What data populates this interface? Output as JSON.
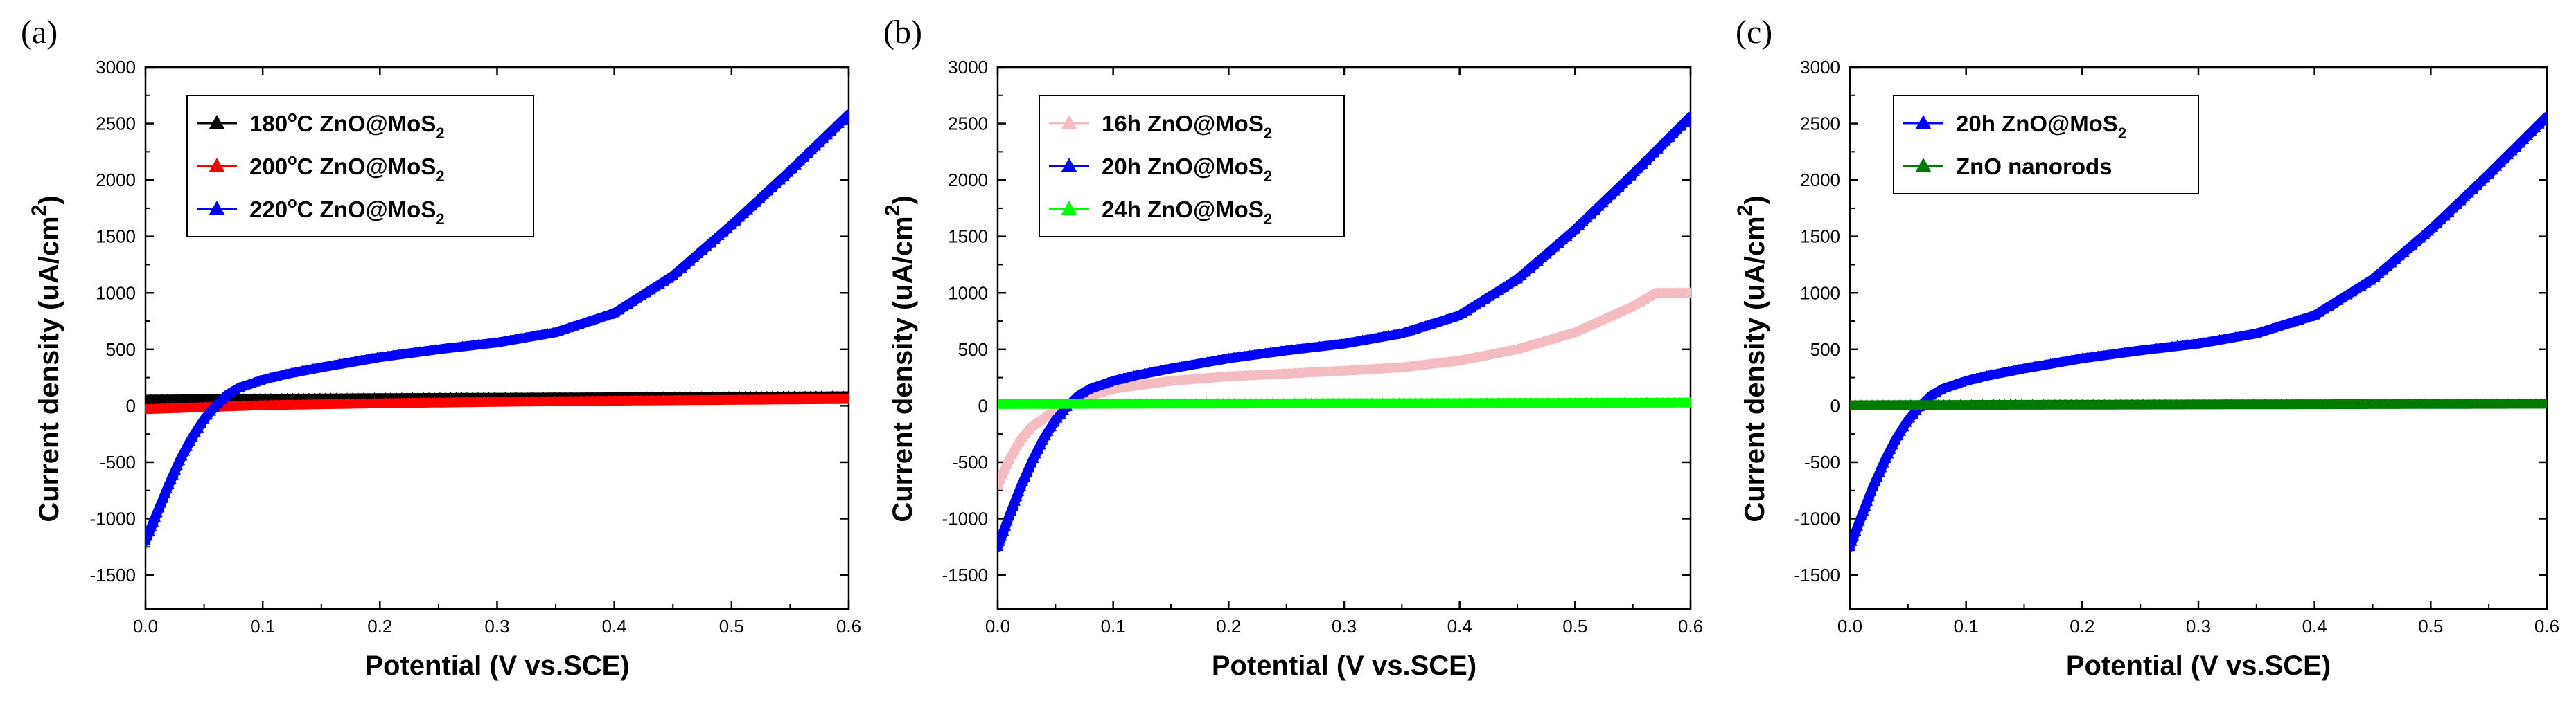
{
  "chart_data": [
    {
      "type": "line",
      "panel_label": "(a)",
      "xlabel": "Potential (V vs.SCE)",
      "ylabel": "Current density (uA/cm",
      "ylabel_sup": "2",
      "ylabel_close": ")",
      "xlim": [
        0.0,
        0.6
      ],
      "ylim": [
        -1800,
        3000
      ],
      "x_ticks": [
        "0.0",
        "0.1",
        "0.2",
        "0.3",
        "0.4",
        "0.5",
        "0.6"
      ],
      "y_ticks": [
        "-1500",
        "-1000",
        "-500",
        "0",
        "500",
        "1000",
        "1500",
        "2000",
        "2500",
        "3000"
      ],
      "legend_position": "top-left",
      "series": [
        {
          "name": "180°C ZnO@MoS₂",
          "label_pre": "180",
          "label_sup": "o",
          "label_mid": "C ZnO@MoS",
          "label_sub": "2",
          "color": "#000000",
          "x": [
            0,
            0.1,
            0.2,
            0.3,
            0.4,
            0.5,
            0.6
          ],
          "y": [
            55,
            62,
            68,
            72,
            76,
            80,
            85
          ]
        },
        {
          "name": "200°C ZnO@MoS₂",
          "label_pre": "200",
          "label_sup": "o",
          "label_mid": "C ZnO@MoS",
          "label_sub": "2",
          "color": "#ff0000",
          "x": [
            0,
            0.1,
            0.2,
            0.3,
            0.4,
            0.5,
            0.6
          ],
          "y": [
            -30,
            5,
            22,
            35,
            45,
            52,
            60
          ]
        },
        {
          "name": "220°C ZnO@MoS₂",
          "label_pre": "220",
          "label_sup": "o",
          "label_mid": "C ZnO@MoS",
          "label_sub": "2",
          "color": "#0000ff",
          "x": [
            0,
            0.01,
            0.02,
            0.03,
            0.04,
            0.05,
            0.06,
            0.07,
            0.08,
            0.1,
            0.12,
            0.15,
            0.2,
            0.25,
            0.3,
            0.35,
            0.4,
            0.45,
            0.5,
            0.55,
            0.6
          ],
          "y": [
            -1200,
            -950,
            -700,
            -470,
            -280,
            -120,
            0,
            100,
            160,
            230,
            280,
            340,
            430,
            500,
            560,
            650,
            820,
            1150,
            1600,
            2080,
            2580
          ]
        }
      ]
    },
    {
      "type": "line",
      "panel_label": "(b)",
      "xlabel": "Potential (V vs.SCE)",
      "ylabel": "Current density (uA/cm",
      "ylabel_sup": "2",
      "ylabel_close": ")",
      "xlim": [
        0.0,
        0.6
      ],
      "ylim": [
        -1800,
        3000
      ],
      "x_ticks": [
        "0.0",
        "0.1",
        "0.2",
        "0.3",
        "0.4",
        "0.5",
        "0.6"
      ],
      "y_ticks": [
        "-1500",
        "-1000",
        "-500",
        "0",
        "500",
        "1000",
        "1500",
        "2000",
        "2500",
        "3000"
      ],
      "legend_position": "top-left",
      "series": [
        {
          "name": "16h ZnO@MoS₂",
          "label_pre": "16h ZnO@MoS",
          "label_sup": "",
          "label_mid": "",
          "label_sub": "2",
          "color": "#f2bcc0",
          "x": [
            0,
            0.01,
            0.02,
            0.03,
            0.05,
            0.07,
            0.1,
            0.15,
            0.2,
            0.25,
            0.3,
            0.35,
            0.4,
            0.45,
            0.5,
            0.55,
            0.57,
            0.6
          ],
          "y": [
            -700,
            -480,
            -300,
            -180,
            -40,
            60,
            150,
            220,
            260,
            285,
            310,
            340,
            400,
            500,
            650,
            880,
            1000,
            1000
          ]
        },
        {
          "name": "20h ZnO@MoS₂",
          "label_pre": "20h ZnO@MoS",
          "label_sup": "",
          "label_mid": "",
          "label_sub": "2",
          "color": "#0000ff",
          "x": [
            0,
            0.01,
            0.02,
            0.03,
            0.04,
            0.05,
            0.06,
            0.07,
            0.08,
            0.1,
            0.12,
            0.15,
            0.2,
            0.25,
            0.3,
            0.35,
            0.4,
            0.45,
            0.5,
            0.55,
            0.6
          ],
          "y": [
            -1250,
            -980,
            -720,
            -490,
            -290,
            -130,
            -10,
            90,
            150,
            220,
            270,
            330,
            420,
            490,
            550,
            640,
            800,
            1120,
            1560,
            2050,
            2560
          ]
        },
        {
          "name": "24h ZnO@MoS₂",
          "label_pre": "24h ZnO@MoS",
          "label_sup": "",
          "label_mid": "",
          "label_sub": "2",
          "color": "#00ff00",
          "x": [
            0,
            0.1,
            0.2,
            0.3,
            0.4,
            0.5,
            0.6
          ],
          "y": [
            15,
            18,
            20,
            22,
            24,
            26,
            28
          ]
        }
      ]
    },
    {
      "type": "line",
      "panel_label": "(c)",
      "xlabel": "Potential (V vs.SCE)",
      "ylabel": "Current density (uA/cm",
      "ylabel_sup": "2",
      "ylabel_close": ")",
      "xlim": [
        0.0,
        0.6
      ],
      "ylim": [
        -1800,
        3000
      ],
      "x_ticks": [
        "0.0",
        "0.1",
        "0.2",
        "0.3",
        "0.4",
        "0.5",
        "0.6"
      ],
      "y_ticks": [
        "-1500",
        "-1000",
        "-500",
        "0",
        "500",
        "1000",
        "1500",
        "2000",
        "2500",
        "3000"
      ],
      "legend_position": "top-left",
      "series": [
        {
          "name": "20h ZnO@MoS₂",
          "label_pre": "20h ZnO@MoS",
          "label_sup": "",
          "label_mid": "",
          "label_sub": "2",
          "color": "#0000ff",
          "x": [
            0,
            0.01,
            0.02,
            0.03,
            0.04,
            0.05,
            0.06,
            0.07,
            0.08,
            0.1,
            0.12,
            0.15,
            0.2,
            0.25,
            0.3,
            0.35,
            0.4,
            0.45,
            0.5,
            0.55,
            0.6
          ],
          "y": [
            -1250,
            -980,
            -720,
            -490,
            -290,
            -130,
            -10,
            90,
            150,
            220,
            270,
            330,
            420,
            490,
            550,
            640,
            800,
            1120,
            1560,
            2050,
            2560
          ]
        },
        {
          "name": "ZnO nanorods",
          "label_pre": "ZnO nanorods",
          "label_sup": "",
          "label_mid": "",
          "label_sub": "",
          "color": "#007a00",
          "x": [
            0,
            0.1,
            0.2,
            0.3,
            0.4,
            0.5,
            0.6
          ],
          "y": [
            5,
            8,
            10,
            12,
            14,
            16,
            18
          ]
        }
      ]
    }
  ]
}
